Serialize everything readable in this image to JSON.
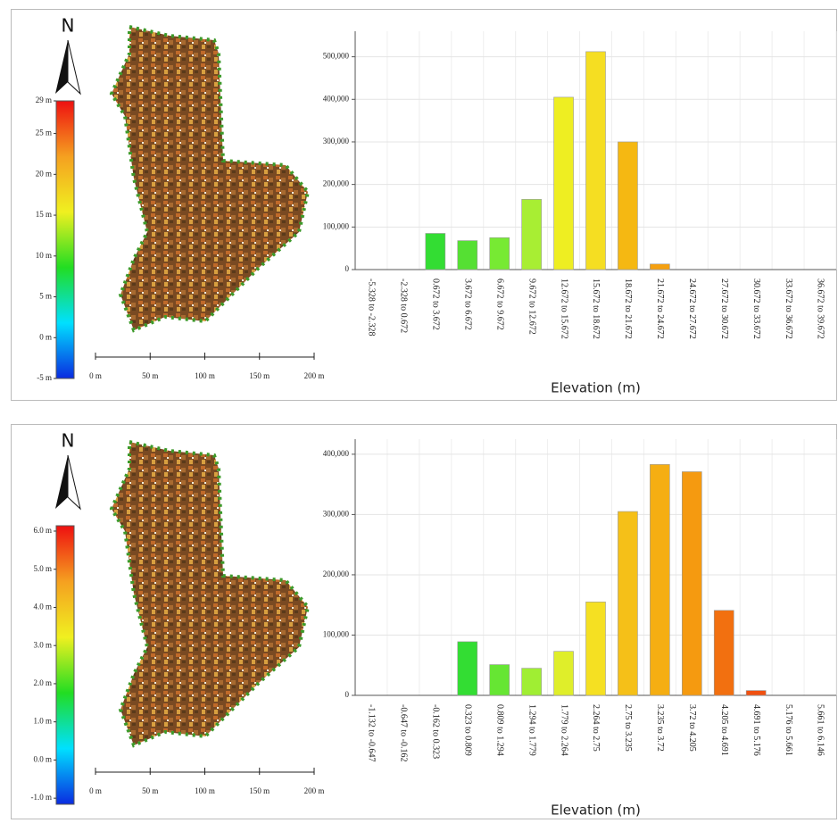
{
  "chart_data": [
    {
      "type": "bar",
      "x_label": "Elevation (m)",
      "categories": [
        "-5.328 to -2.328",
        "-2.328 to 0.672",
        "0.672 to 3.672",
        "3.672 to 6.672",
        "6.672 to 9.672",
        "9.672 to 12.672",
        "12.672 to 15.672",
        "15.672 to 18.672",
        "18.672 to 21.672",
        "21.672 to 24.672",
        "24.672 to 27.672",
        "27.672 to 30.672",
        "30.672 to 33.672",
        "33.672 to 36.672",
        "36.672 to 39.672"
      ],
      "values": [
        0,
        0,
        85000,
        68000,
        75000,
        165000,
        405000,
        512000,
        300000,
        13000,
        0,
        0,
        0,
        0,
        0
      ],
      "colors": [
        "#33dd33",
        "#33dd33",
        "#33dd33",
        "#55e033",
        "#77ea33",
        "#a8ee33",
        "#eeee22",
        "#f5de22",
        "#f5b812",
        "#f5a010",
        "#f5a010",
        "#f5a010",
        "#f5a010",
        "#f5a010",
        "#f5a010"
      ],
      "ylim": [
        0,
        560000
      ],
      "yticks": [
        0,
        {
          "value": 100000,
          "label": "100,000"
        },
        {
          "value": 200000,
          "label": "200,000"
        },
        {
          "value": 300000,
          "label": "300,000"
        },
        {
          "value": 400000,
          "label": "400,000"
        },
        {
          "value": 500000,
          "label": "500,000"
        }
      ],
      "grid": true
    },
    {
      "type": "bar",
      "x_label": "Elevation (m)",
      "categories": [
        "-1.132 to -0.647",
        "-0.647 to -0.162",
        "-0.162 to 0.323",
        "0.323 to 0.809",
        "0.809 to 1.294",
        "1.294 to 1.779",
        "1.779 to 2.264",
        "2.264 to 2.75",
        "2.75 to 3.235",
        "3.235 to 3.72",
        "3.72 to 4.205",
        "4.205 to 4.691",
        "4.691 to 5.176",
        "5.176 to 5.661",
        "5.661 to 6.146"
      ],
      "values": [
        0,
        0,
        0,
        89000,
        51000,
        45000,
        73000,
        155000,
        305000,
        383000,
        371000,
        141000,
        8000,
        0,
        0
      ],
      "colors": [
        "#33dd33",
        "#33dd33",
        "#33dd33",
        "#33dd33",
        "#66e633",
        "#a0ee33",
        "#dfee2a",
        "#f5e022",
        "#f5c018",
        "#f5ae12",
        "#f59a10",
        "#f27010",
        "#f05010",
        "#f05010",
        "#f05010"
      ],
      "ylim": [
        0,
        425000
      ],
      "yticks": [
        0,
        {
          "value": 100000,
          "label": "100,000"
        },
        {
          "value": 200000,
          "label": "200,000"
        },
        {
          "value": 300000,
          "label": "300,000"
        },
        {
          "value": 400000,
          "label": "400,000"
        }
      ],
      "grid": true
    }
  ],
  "maps": [
    {
      "north": "N",
      "colorbar": {
        "lim": [
          -5,
          29
        ],
        "colormap": [
          "#0a2be0",
          "#00e0ff",
          "#22dd22",
          "#f0f020",
          "#f5a020",
          "#ee1010"
        ],
        "ticks": [
          {
            "value": 29,
            "label": "29 m"
          },
          {
            "value": 25,
            "label": "25 m"
          },
          {
            "value": 20,
            "label": "20 m"
          },
          {
            "value": 15,
            "label": "15 m"
          },
          {
            "value": 10,
            "label": "10 m"
          },
          {
            "value": 5,
            "label": "5 m"
          },
          {
            "value": 0,
            "label": "0 m"
          },
          {
            "value": -5,
            "label": "-5 m"
          }
        ]
      },
      "scale_bar": {
        "lim": [
          0,
          200
        ],
        "ticks": [
          {
            "value": 0,
            "label": "0 m"
          },
          {
            "value": 50,
            "label": "50 m"
          },
          {
            "value": 100,
            "label": "100 m"
          },
          {
            "value": 150,
            "label": "150 m"
          },
          {
            "value": 200,
            "label": "200 m"
          }
        ]
      }
    },
    {
      "north": "N",
      "colorbar": {
        "lim": [
          -1.16,
          6.14
        ],
        "colormap": [
          "#0a2be0",
          "#00e0ff",
          "#22dd22",
          "#f0f020",
          "#f5a020",
          "#ee1010"
        ],
        "ticks": [
          {
            "value": 6,
            "label": "6.0 m"
          },
          {
            "value": 5,
            "label": "5.0 m"
          },
          {
            "value": 4,
            "label": "4.0 m"
          },
          {
            "value": 3,
            "label": "3.0 m"
          },
          {
            "value": 2,
            "label": "2.0 m"
          },
          {
            "value": 1,
            "label": "1.0 m"
          },
          {
            "value": 0,
            "label": "0.0 m"
          },
          {
            "value": -1,
            "label": "-1.0 m"
          }
        ]
      },
      "scale_bar": {
        "lim": [
          0,
          200
        ],
        "ticks": [
          {
            "value": 0,
            "label": "0 m"
          },
          {
            "value": 50,
            "label": "50 m"
          },
          {
            "value": 100,
            "label": "100 m"
          },
          {
            "value": 150,
            "label": "150 m"
          },
          {
            "value": 200,
            "label": "200 m"
          }
        ]
      }
    }
  ]
}
